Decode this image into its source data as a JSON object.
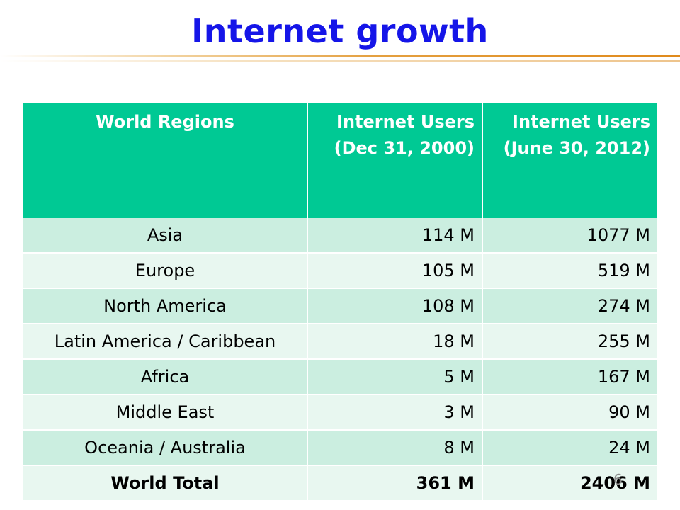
{
  "slide": {
    "title": "Internet growth",
    "slide_number": "6"
  },
  "table": {
    "headers": [
      "World Regions",
      "Internet Users (Dec 31, 2000)",
      "Internet Users (June 30, 2012)"
    ],
    "rows": [
      {
        "region": "Asia",
        "users_2000": "114 M",
        "users_2012": "1077 M"
      },
      {
        "region": "Europe",
        "users_2000": "105 M",
        "users_2012": "519 M"
      },
      {
        "region": "North America",
        "users_2000": "108 M",
        "users_2012": "274 M"
      },
      {
        "region": "Latin America / Caribbean",
        "users_2000": "18 M",
        "users_2012": "255 M"
      },
      {
        "region": "Africa",
        "users_2000": "5 M",
        "users_2012": "167 M"
      },
      {
        "region": "Middle East",
        "users_2000": "3 M",
        "users_2012": "90 M"
      },
      {
        "region": "Oceania / Australia",
        "users_2000": "8 M",
        "users_2012": "24 M"
      }
    ],
    "total": {
      "region": "World Total",
      "users_2000": "361 M",
      "users_2012": "2406 M"
    }
  },
  "colors": {
    "title": "#1515e8",
    "header_bg": "#00c994",
    "row_odd_bg": "#cbeee0",
    "row_even_bg": "#e8f7f0",
    "rule_accent": "#e08a1c"
  }
}
